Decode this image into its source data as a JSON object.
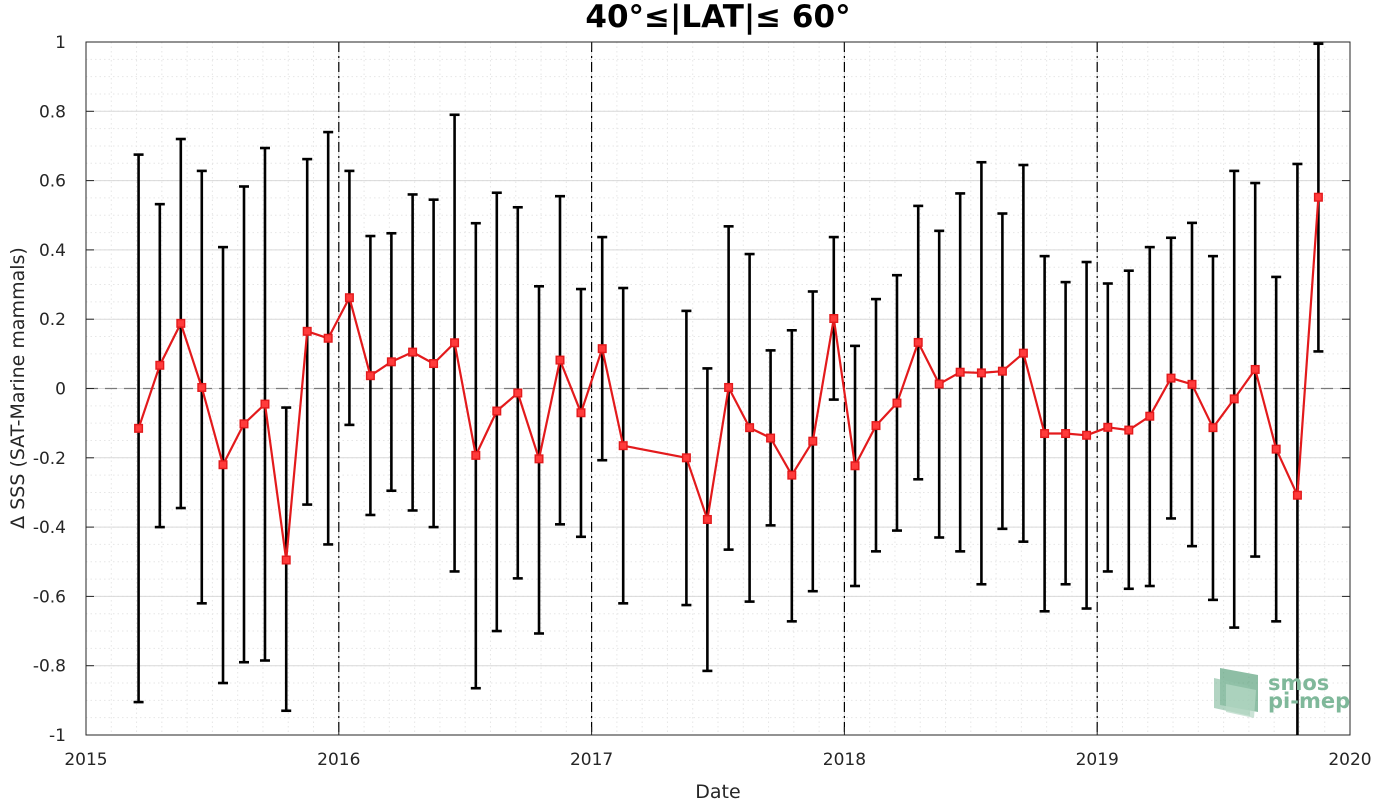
{
  "chart_data": {
    "type": "line",
    "title": "40°≤|LAT|≤ 60°",
    "xlabel": "Date",
    "ylabel": "Δ SSS (SAT-Marine mammals)",
    "xlim": [
      2015,
      2020
    ],
    "ylim": [
      -1,
      1
    ],
    "xticks": [
      2015,
      2016,
      2017,
      2018,
      2019,
      2020
    ],
    "yticks": [
      -1,
      -0.8,
      -0.6,
      -0.4,
      -0.2,
      0,
      0.2,
      0.4,
      0.6,
      0.8,
      1
    ],
    "ytick_labels": [
      "-1",
      "-0.8",
      "-0.6",
      "-0.4",
      "-0.2",
      "0",
      "0.2",
      "0.4",
      "0.6",
      "0.8",
      "1"
    ],
    "grid": true,
    "minor_grid": true,
    "year_separators": [
      2016,
      2017,
      2018,
      2019
    ],
    "zero_line": 0,
    "series": [
      {
        "color": "#e31a1c",
        "errorbar_color": "#000000",
        "points": [
          {
            "x": 2015.208,
            "y": -0.115,
            "lo": -0.905,
            "hi": 0.675
          },
          {
            "x": 2015.292,
            "y": 0.067,
            "lo": -0.4,
            "hi": 0.532
          },
          {
            "x": 2015.375,
            "y": 0.188,
            "lo": -0.345,
            "hi": 0.72
          },
          {
            "x": 2015.458,
            "y": 0.003,
            "lo": -0.62,
            "hi": 0.628
          },
          {
            "x": 2015.542,
            "y": -0.22,
            "lo": -0.85,
            "hi": 0.408
          },
          {
            "x": 2015.625,
            "y": -0.102,
            "lo": -0.79,
            "hi": 0.583
          },
          {
            "x": 2015.708,
            "y": -0.045,
            "lo": -0.785,
            "hi": 0.694
          },
          {
            "x": 2015.792,
            "y": -0.495,
            "lo": -0.93,
            "hi": -0.055
          },
          {
            "x": 2015.875,
            "y": 0.165,
            "lo": -0.335,
            "hi": 0.662
          },
          {
            "x": 2015.958,
            "y": 0.145,
            "lo": -0.45,
            "hi": 0.74
          },
          {
            "x": 2016.042,
            "y": 0.262,
            "lo": -0.105,
            "hi": 0.628
          },
          {
            "x": 2016.125,
            "y": 0.037,
            "lo": -0.365,
            "hi": 0.44
          },
          {
            "x": 2016.208,
            "y": 0.077,
            "lo": -0.295,
            "hi": 0.448
          },
          {
            "x": 2016.292,
            "y": 0.105,
            "lo": -0.352,
            "hi": 0.56
          },
          {
            "x": 2016.375,
            "y": 0.072,
            "lo": -0.4,
            "hi": 0.545
          },
          {
            "x": 2016.458,
            "y": 0.132,
            "lo": -0.528,
            "hi": 0.79
          },
          {
            "x": 2016.542,
            "y": -0.193,
            "lo": -0.865,
            "hi": 0.477
          },
          {
            "x": 2016.625,
            "y": -0.065,
            "lo": -0.7,
            "hi": 0.565
          },
          {
            "x": 2016.708,
            "y": -0.013,
            "lo": -0.548,
            "hi": 0.523
          },
          {
            "x": 2016.792,
            "y": -0.203,
            "lo": -0.707,
            "hi": 0.295
          },
          {
            "x": 2016.875,
            "y": 0.082,
            "lo": -0.392,
            "hi": 0.555
          },
          {
            "x": 2016.958,
            "y": -0.07,
            "lo": -0.428,
            "hi": 0.287
          },
          {
            "x": 2017.042,
            "y": 0.115,
            "lo": -0.207,
            "hi": 0.437
          },
          {
            "x": 2017.125,
            "y": -0.165,
            "lo": -0.62,
            "hi": 0.29
          },
          {
            "x": 2017.375,
            "y": -0.2,
            "lo": -0.625,
            "hi": 0.224
          },
          {
            "x": 2017.458,
            "y": -0.378,
            "lo": -0.815,
            "hi": 0.058
          },
          {
            "x": 2017.542,
            "y": 0.003,
            "lo": -0.465,
            "hi": 0.468
          },
          {
            "x": 2017.625,
            "y": -0.113,
            "lo": -0.615,
            "hi": 0.388
          },
          {
            "x": 2017.708,
            "y": -0.143,
            "lo": -0.395,
            "hi": 0.11
          },
          {
            "x": 2017.792,
            "y": -0.25,
            "lo": -0.672,
            "hi": 0.168
          },
          {
            "x": 2017.875,
            "y": -0.152,
            "lo": -0.585,
            "hi": 0.28
          },
          {
            "x": 2017.958,
            "y": 0.202,
            "lo": -0.032,
            "hi": 0.437
          },
          {
            "x": 2018.042,
            "y": -0.223,
            "lo": -0.57,
            "hi": 0.123
          },
          {
            "x": 2018.125,
            "y": -0.107,
            "lo": -0.47,
            "hi": 0.258
          },
          {
            "x": 2018.208,
            "y": -0.042,
            "lo": -0.41,
            "hi": 0.327
          },
          {
            "x": 2018.292,
            "y": 0.133,
            "lo": -0.262,
            "hi": 0.527
          },
          {
            "x": 2018.375,
            "y": 0.013,
            "lo": -0.43,
            "hi": 0.455
          },
          {
            "x": 2018.458,
            "y": 0.047,
            "lo": -0.47,
            "hi": 0.563
          },
          {
            "x": 2018.542,
            "y": 0.045,
            "lo": -0.565,
            "hi": 0.653
          },
          {
            "x": 2018.625,
            "y": 0.05,
            "lo": -0.405,
            "hi": 0.505
          },
          {
            "x": 2018.708,
            "y": 0.102,
            "lo": -0.442,
            "hi": 0.645
          },
          {
            "x": 2018.792,
            "y": -0.13,
            "lo": -0.643,
            "hi": 0.382
          },
          {
            "x": 2018.875,
            "y": -0.13,
            "lo": -0.565,
            "hi": 0.307
          },
          {
            "x": 2018.958,
            "y": -0.135,
            "lo": -0.635,
            "hi": 0.365
          },
          {
            "x": 2019.042,
            "y": -0.112,
            "lo": -0.528,
            "hi": 0.303
          },
          {
            "x": 2019.125,
            "y": -0.12,
            "lo": -0.578,
            "hi": 0.34
          },
          {
            "x": 2019.208,
            "y": -0.08,
            "lo": -0.57,
            "hi": 0.408
          },
          {
            "x": 2019.292,
            "y": 0.03,
            "lo": -0.375,
            "hi": 0.435
          },
          {
            "x": 2019.375,
            "y": 0.012,
            "lo": -0.455,
            "hi": 0.478
          },
          {
            "x": 2019.458,
            "y": -0.113,
            "lo": -0.61,
            "hi": 0.382
          },
          {
            "x": 2019.542,
            "y": -0.03,
            "lo": -0.69,
            "hi": 0.628
          },
          {
            "x": 2019.625,
            "y": 0.055,
            "lo": -0.485,
            "hi": 0.593
          },
          {
            "x": 2019.708,
            "y": -0.175,
            "lo": -0.672,
            "hi": 0.322
          },
          {
            "x": 2019.792,
            "y": -0.308,
            "lo": -1.0,
            "hi": 0.648
          },
          {
            "x": 2019.875,
            "y": 0.552,
            "lo": 0.107,
            "hi": 0.995
          }
        ]
      }
    ]
  },
  "logo": {
    "line1": "smos",
    "line2": "pi-mep"
  },
  "colors": {
    "line": "#e31a1c",
    "errorbar": "#000000",
    "logo": "#7fb89a",
    "grid": "#d9d9d9"
  }
}
